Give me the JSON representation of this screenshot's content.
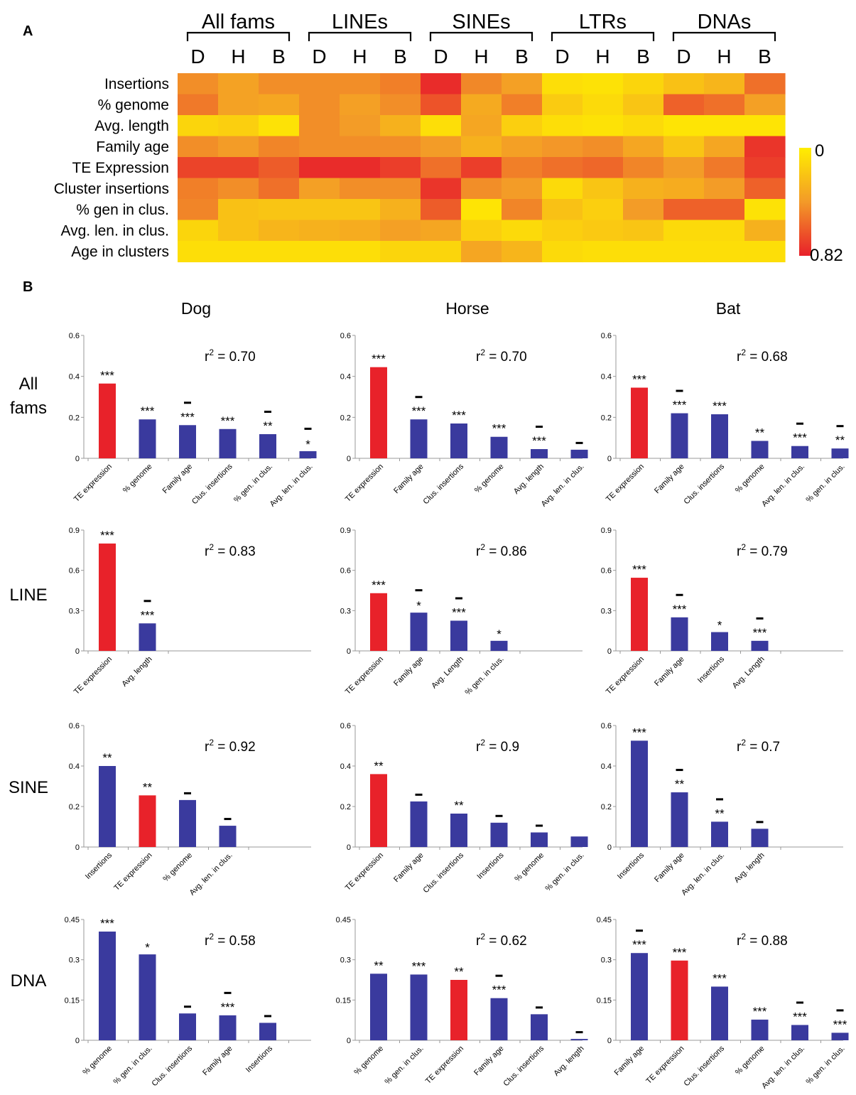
{
  "figure": {
    "panel_a_label": "A",
    "panel_b_label": "B"
  },
  "chart_data": [
    {
      "type": "heatmap",
      "panel": "A",
      "groups": [
        {
          "name": "All fams",
          "columns": [
            "D",
            "H",
            "B"
          ]
        },
        {
          "name": "LINEs",
          "columns": [
            "D",
            "H",
            "B"
          ]
        },
        {
          "name": "SINEs",
          "columns": [
            "D",
            "H",
            "B"
          ]
        },
        {
          "name": "LTRs",
          "columns": [
            "D",
            "H",
            "B"
          ]
        },
        {
          "name": "DNAs",
          "columns": [
            "D",
            "H",
            "B"
          ]
        }
      ],
      "rows": [
        "Insertions",
        "% genome",
        "Avg. length",
        "Family age",
        "TE Expression",
        "Cluster insertions",
        "% gen in clus.",
        "Avg. len. in clus.",
        "Age in clusters"
      ],
      "values": [
        [
          0.45,
          0.37,
          0.45,
          0.45,
          0.45,
          0.5,
          0.78,
          0.47,
          0.38,
          0.08,
          0.06,
          0.12,
          0.22,
          0.28,
          0.55
        ],
        [
          0.52,
          0.37,
          0.35,
          0.45,
          0.38,
          0.45,
          0.65,
          0.33,
          0.5,
          0.17,
          0.1,
          0.2,
          0.6,
          0.55,
          0.38
        ],
        [
          0.12,
          0.15,
          0.06,
          0.45,
          0.4,
          0.3,
          0.08,
          0.35,
          0.15,
          0.08,
          0.06,
          0.1,
          0.05,
          0.05,
          0.05
        ],
        [
          0.45,
          0.4,
          0.48,
          0.45,
          0.45,
          0.45,
          0.4,
          0.3,
          0.38,
          0.42,
          0.45,
          0.35,
          0.2,
          0.35,
          0.75
        ],
        [
          0.7,
          0.7,
          0.62,
          0.78,
          0.78,
          0.72,
          0.55,
          0.72,
          0.5,
          0.55,
          0.58,
          0.48,
          0.4,
          0.52,
          0.72
        ],
        [
          0.5,
          0.45,
          0.55,
          0.38,
          0.45,
          0.45,
          0.75,
          0.45,
          0.4,
          0.1,
          0.2,
          0.3,
          0.32,
          0.4,
          0.6
        ],
        [
          0.48,
          0.22,
          0.2,
          0.2,
          0.2,
          0.3,
          0.62,
          0.05,
          0.48,
          0.22,
          0.15,
          0.4,
          0.6,
          0.6,
          0.06
        ],
        [
          0.12,
          0.22,
          0.28,
          0.3,
          0.32,
          0.38,
          0.35,
          0.15,
          0.1,
          0.15,
          0.18,
          0.2,
          0.1,
          0.1,
          0.3
        ],
        [
          0.08,
          0.08,
          0.08,
          0.08,
          0.08,
          0.12,
          0.12,
          0.35,
          0.28,
          0.1,
          0.08,
          0.08,
          0.08,
          0.08,
          0.08
        ]
      ],
      "colorbar": {
        "min_label": "0",
        "max_label": "0.82",
        "min": 0,
        "max": 0.82,
        "low_color": "#ffee00",
        "high_color": "#e8202a"
      }
    },
    {
      "type": "bar",
      "panel": "B",
      "column_titles": [
        "Dog",
        "Horse",
        "Bat"
      ],
      "row_labels": [
        [
          "All",
          "fams"
        ],
        [
          "LINE"
        ],
        [
          "SINE"
        ],
        [
          "DNA"
        ]
      ],
      "bar_colors": {
        "red": "#e8222a",
        "blue": "#3a3a9e"
      },
      "grid": [
        [
          {
            "r2_prefix": "r",
            "r2_sup": "2",
            "r2_value": " = 0.70",
            "ylim": [
              0,
              0.6
            ],
            "yticks": [
              "0",
              "0.2",
              "0.4",
              "0.6"
            ],
            "bars": [
              {
                "label": "TE expression",
                "value": 0.365,
                "color": "red",
                "sig": "***",
                "neg": false
              },
              {
                "label": "% genome",
                "value": 0.19,
                "color": "blue",
                "sig": "***",
                "neg": false
              },
              {
                "label": "Family age",
                "value": 0.162,
                "color": "blue",
                "sig": "***",
                "neg": true
              },
              {
                "label": "Clus. insertions",
                "value": 0.143,
                "color": "blue",
                "sig": "***",
                "neg": false
              },
              {
                "label": "% gen. in clus.",
                "value": 0.118,
                "color": "blue",
                "sig": "**",
                "neg": true
              },
              {
                "label": "Avg. len. in clus.",
                "value": 0.035,
                "color": "blue",
                "sig": "*",
                "neg": true
              }
            ]
          },
          {
            "r2_prefix": "r",
            "r2_sup": "2",
            "r2_value": " = 0.70",
            "ylim": [
              0,
              0.6
            ],
            "yticks": [
              "0",
              "0.2",
              "0.4",
              "0.6"
            ],
            "bars": [
              {
                "label": "TE expression",
                "value": 0.445,
                "color": "red",
                "sig": "***",
                "neg": false
              },
              {
                "label": "Family age",
                "value": 0.19,
                "color": "blue",
                "sig": "***",
                "neg": true
              },
              {
                "label": "Clus. insertions",
                "value": 0.17,
                "color": "blue",
                "sig": "***",
                "neg": false
              },
              {
                "label": "% genome",
                "value": 0.105,
                "color": "blue",
                "sig": "***",
                "neg": false
              },
              {
                "label": "Avg. length",
                "value": 0.045,
                "color": "blue",
                "sig": "***",
                "neg": true
              },
              {
                "label": "Avg. len. in clus.",
                "value": 0.042,
                "color": "blue",
                "sig": "",
                "neg": true
              }
            ]
          },
          {
            "r2_prefix": "r",
            "r2_sup": "2",
            "r2_value": " = 0.68",
            "ylim": [
              0,
              0.6
            ],
            "yticks": [
              "0",
              "0.2",
              "0.4",
              "0.6"
            ],
            "bars": [
              {
                "label": "TE expression",
                "value": 0.345,
                "color": "red",
                "sig": "***",
                "neg": false
              },
              {
                "label": "Family age",
                "value": 0.22,
                "color": "blue",
                "sig": "***",
                "neg": true
              },
              {
                "label": "Clus. insertions",
                "value": 0.215,
                "color": "blue",
                "sig": "***",
                "neg": false
              },
              {
                "label": "% genome",
                "value": 0.085,
                "color": "blue",
                "sig": "**",
                "neg": false
              },
              {
                "label": "Avg. len. in clus.",
                "value": 0.06,
                "color": "blue",
                "sig": "***",
                "neg": true
              },
              {
                "label": "% gen. in clus.",
                "value": 0.048,
                "color": "blue",
                "sig": "**",
                "neg": true
              }
            ]
          }
        ],
        [
          {
            "r2_prefix": "r",
            "r2_sup": "2",
            "r2_value": " = 0.83",
            "ylim": [
              0,
              0.9
            ],
            "yticks": [
              "0",
              "0.3",
              "0.6",
              "0.9"
            ],
            "bars": [
              {
                "label": "TE expression",
                "value": 0.8,
                "color": "red",
                "sig": "***",
                "neg": false
              },
              {
                "label": "Avg. length",
                "value": 0.205,
                "color": "blue",
                "sig": "***",
                "neg": true
              }
            ]
          },
          {
            "r2_prefix": "r",
            "r2_sup": "2",
            "r2_value": " = 0.86",
            "ylim": [
              0,
              0.9
            ],
            "yticks": [
              "0",
              "0.3",
              "0.6",
              "0.9"
            ],
            "bars": [
              {
                "label": "TE expression",
                "value": 0.43,
                "color": "red",
                "sig": "***",
                "neg": false
              },
              {
                "label": "Family age",
                "value": 0.285,
                "color": "blue",
                "sig": "*",
                "neg": true
              },
              {
                "label": "Avg. Length",
                "value": 0.225,
                "color": "blue",
                "sig": "***",
                "neg": true
              },
              {
                "label": "% gen. in clus.",
                "value": 0.075,
                "color": "blue",
                "sig": "*",
                "neg": false
              }
            ]
          },
          {
            "r2_prefix": "r",
            "r2_sup": "2",
            "r2_value": " = 0.79",
            "ylim": [
              0,
              0.9
            ],
            "yticks": [
              "0",
              "0.3",
              "0.6",
              "0.9"
            ],
            "bars": [
              {
                "label": "TE expression",
                "value": 0.545,
                "color": "red",
                "sig": "***",
                "neg": false
              },
              {
                "label": "Family age",
                "value": 0.25,
                "color": "blue",
                "sig": "***",
                "neg": true
              },
              {
                "label": "Insertions",
                "value": 0.14,
                "color": "blue",
                "sig": "*",
                "neg": false
              },
              {
                "label": "Avg. Length",
                "value": 0.075,
                "color": "blue",
                "sig": "***",
                "neg": true
              }
            ]
          }
        ],
        [
          {
            "r2_prefix": "r",
            "r2_sup": "2",
            "r2_value": " = 0.92",
            "ylim": [
              0,
              0.6
            ],
            "yticks": [
              "0",
              "0.2",
              "0.4",
              "0.6"
            ],
            "bars": [
              {
                "label": "Insertions",
                "value": 0.4,
                "color": "blue",
                "sig": "**",
                "neg": false
              },
              {
                "label": "TE expression",
                "value": 0.255,
                "color": "red",
                "sig": "**",
                "neg": false
              },
              {
                "label": "% genome",
                "value": 0.232,
                "color": "blue",
                "sig": "",
                "neg": true
              },
              {
                "label": "Avg. len. in clus.",
                "value": 0.105,
                "color": "blue",
                "sig": "",
                "neg": true
              }
            ]
          },
          {
            "r2_prefix": "r",
            "r2_sup": "2",
            "r2_value": " = 0.9",
            "ylim": [
              0,
              0.6
            ],
            "yticks": [
              "0",
              "0.2",
              "0.4",
              "0.6"
            ],
            "bars": [
              {
                "label": "TE expression",
                "value": 0.36,
                "color": "red",
                "sig": "**",
                "neg": false
              },
              {
                "label": "Family age",
                "value": 0.225,
                "color": "blue",
                "sig": "",
                "neg": true
              },
              {
                "label": "Clus. insertions",
                "value": 0.165,
                "color": "blue",
                "sig": "**",
                "neg": false
              },
              {
                "label": "Insertions",
                "value": 0.12,
                "color": "blue",
                "sig": "",
                "neg": true
              },
              {
                "label": "% genome",
                "value": 0.072,
                "color": "blue",
                "sig": "",
                "neg": true
              },
              {
                "label": "% gen. in clus.",
                "value": 0.052,
                "color": "blue",
                "sig": "",
                "neg": false
              }
            ]
          },
          {
            "r2_prefix": "r",
            "r2_sup": "2",
            "r2_value": " = 0.7",
            "ylim": [
              0,
              0.6
            ],
            "yticks": [
              "0",
              "0.2",
              "0.4",
              "0.6"
            ],
            "bars": [
              {
                "label": "Insertions",
                "value": 0.525,
                "color": "blue",
                "sig": "***",
                "neg": false
              },
              {
                "label": "Family age",
                "value": 0.27,
                "color": "blue",
                "sig": "**",
                "neg": true
              },
              {
                "label": "Avg. len. in clus.",
                "value": 0.125,
                "color": "blue",
                "sig": "**",
                "neg": true
              },
              {
                "label": "Avg. length",
                "value": 0.09,
                "color": "blue",
                "sig": "",
                "neg": true
              }
            ]
          }
        ],
        [
          {
            "r2_prefix": "r",
            "r2_sup": "2",
            "r2_value": " = 0.58",
            "ylim": [
              0,
              0.45
            ],
            "yticks": [
              "0",
              "0.15",
              "0.3",
              "0.45"
            ],
            "bars": [
              {
                "label": "% genome",
                "value": 0.405,
                "color": "blue",
                "sig": "***",
                "neg": false
              },
              {
                "label": "% gen. in clus.",
                "value": 0.32,
                "color": "blue",
                "sig": "*",
                "neg": false
              },
              {
                "label": "Clus. insertions",
                "value": 0.1,
                "color": "blue",
                "sig": "",
                "neg": true
              },
              {
                "label": "Family age",
                "value": 0.093,
                "color": "blue",
                "sig": "***",
                "neg": true
              },
              {
                "label": "Insertions",
                "value": 0.065,
                "color": "blue",
                "sig": "",
                "neg": true
              }
            ]
          },
          {
            "r2_prefix": "r",
            "r2_sup": "2",
            "r2_value": " = 0.62",
            "ylim": [
              0,
              0.45
            ],
            "yticks": [
              "0",
              "0.15",
              "0.3",
              "0.45"
            ],
            "bars": [
              {
                "label": "% genome",
                "value": 0.248,
                "color": "blue",
                "sig": "**",
                "neg": false
              },
              {
                "label": "% gen. in clus.",
                "value": 0.245,
                "color": "blue",
                "sig": "***",
                "neg": false
              },
              {
                "label": "TE expression",
                "value": 0.225,
                "color": "red",
                "sig": "**",
                "neg": false
              },
              {
                "label": "Family age",
                "value": 0.157,
                "color": "blue",
                "sig": "***",
                "neg": true
              },
              {
                "label": "Clus. insertions",
                "value": 0.097,
                "color": "blue",
                "sig": "",
                "neg": true
              },
              {
                "label": "Avg. length",
                "value": 0.005,
                "color": "blue",
                "sig": "",
                "neg": true
              }
            ]
          },
          {
            "r2_prefix": "r",
            "r2_sup": "2",
            "r2_value": " = 0.88",
            "ylim": [
              0,
              0.45
            ],
            "yticks": [
              "0",
              "0.15",
              "0.3",
              "0.45"
            ],
            "bars": [
              {
                "label": "Family age",
                "value": 0.325,
                "color": "blue",
                "sig": "***",
                "neg": true
              },
              {
                "label": "TE expression",
                "value": 0.297,
                "color": "red",
                "sig": "***",
                "neg": false
              },
              {
                "label": "Clus. insertions",
                "value": 0.2,
                "color": "blue",
                "sig": "***",
                "neg": false
              },
              {
                "label": "% genome",
                "value": 0.077,
                "color": "blue",
                "sig": "***",
                "neg": false
              },
              {
                "label": "Avg. len. in clus.",
                "value": 0.057,
                "color": "blue",
                "sig": "***",
                "neg": true
              },
              {
                "label": "% gen. in clus.",
                "value": 0.028,
                "color": "blue",
                "sig": "***",
                "neg": true
              }
            ]
          }
        ]
      ]
    }
  ]
}
